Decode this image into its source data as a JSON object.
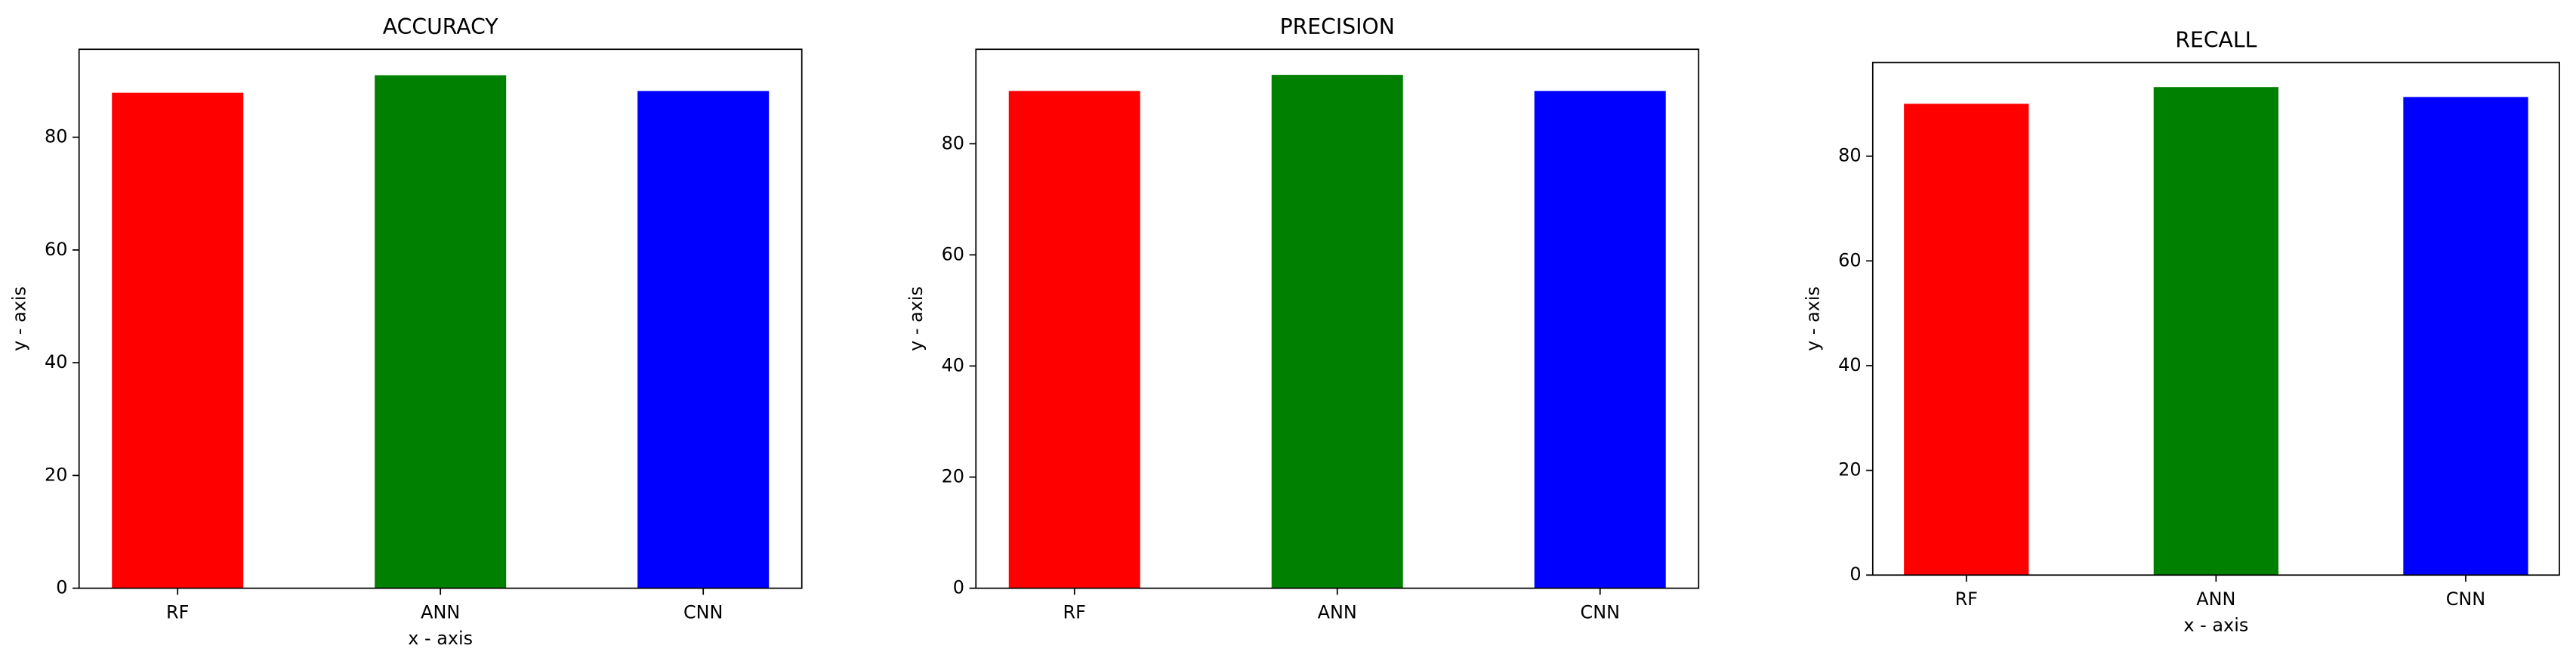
{
  "chart_data": [
    {
      "type": "bar",
      "title": "ACCURACY",
      "xlabel": "x - axis",
      "ylabel": "y - axis",
      "categories": [
        "RF",
        "ANN",
        "CNN"
      ],
      "values": [
        87.9,
        91.0,
        88.2
      ],
      "colors": [
        "#ff0000",
        "#008000",
        "#0000ff"
      ],
      "ylim": [
        0,
        95.6
      ],
      "yticks": [
        0,
        20,
        40,
        60,
        80
      ]
    },
    {
      "type": "bar",
      "title": "PRECISION",
      "ylabel": "y - axis",
      "categories": [
        "RF",
        "ANN",
        "CNN"
      ],
      "values": [
        89.5,
        92.4,
        89.5
      ],
      "colors": [
        "#ff0000",
        "#008000",
        "#0000ff"
      ],
      "ylim": [
        0,
        97.0
      ],
      "yticks": [
        0,
        20,
        40,
        60,
        80
      ]
    },
    {
      "type": "bar",
      "title": "RECALL",
      "xlabel": "x - axis",
      "ylabel": "y - axis",
      "categories": [
        "RF",
        "ANN",
        "CNN"
      ],
      "values": [
        90.0,
        93.2,
        91.3
      ],
      "colors": [
        "#ff0000",
        "#008000",
        "#0000ff"
      ],
      "ylim": [
        0,
        97.9
      ],
      "yticks": [
        0,
        20,
        40,
        60,
        80
      ]
    }
  ]
}
